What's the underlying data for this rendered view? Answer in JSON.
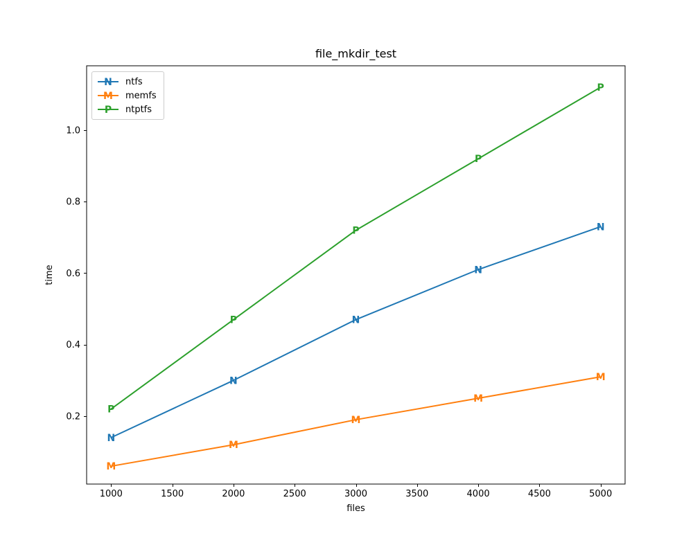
{
  "window": {
    "background_color": "#ffffff"
  },
  "chart_data": {
    "type": "line",
    "title": "file_mkdir_test",
    "xlabel": "files",
    "ylabel": "time",
    "x": [
      1000,
      2000,
      3000,
      4000,
      5000
    ],
    "series": [
      {
        "name": "ntfs",
        "marker": "N",
        "color": "#1f77b4",
        "values": [
          0.14,
          0.3,
          0.47,
          0.61,
          0.73
        ]
      },
      {
        "name": "memfs",
        "marker": "M",
        "color": "#ff7f0e",
        "values": [
          0.06,
          0.12,
          0.19,
          0.25,
          0.31
        ]
      },
      {
        "name": "ntptfs",
        "marker": "P",
        "color": "#2ca02c",
        "values": [
          0.22,
          0.47,
          0.72,
          0.92,
          1.12
        ]
      }
    ],
    "xticks": [
      1000,
      1500,
      2000,
      2500,
      3000,
      3500,
      4000,
      4500,
      5000
    ],
    "yticks": [
      0.2,
      0.4,
      0.6,
      0.8,
      1.0
    ],
    "ytick_labels": [
      "0.2",
      "0.4",
      "0.6",
      "0.8",
      "1.0"
    ],
    "xlim": [
      800,
      5200
    ],
    "ylim": [
      0.01,
      1.18
    ],
    "grid": false,
    "legend_position": "upper-left",
    "axis_color": "#000000",
    "tick_label_color": "#000000"
  }
}
